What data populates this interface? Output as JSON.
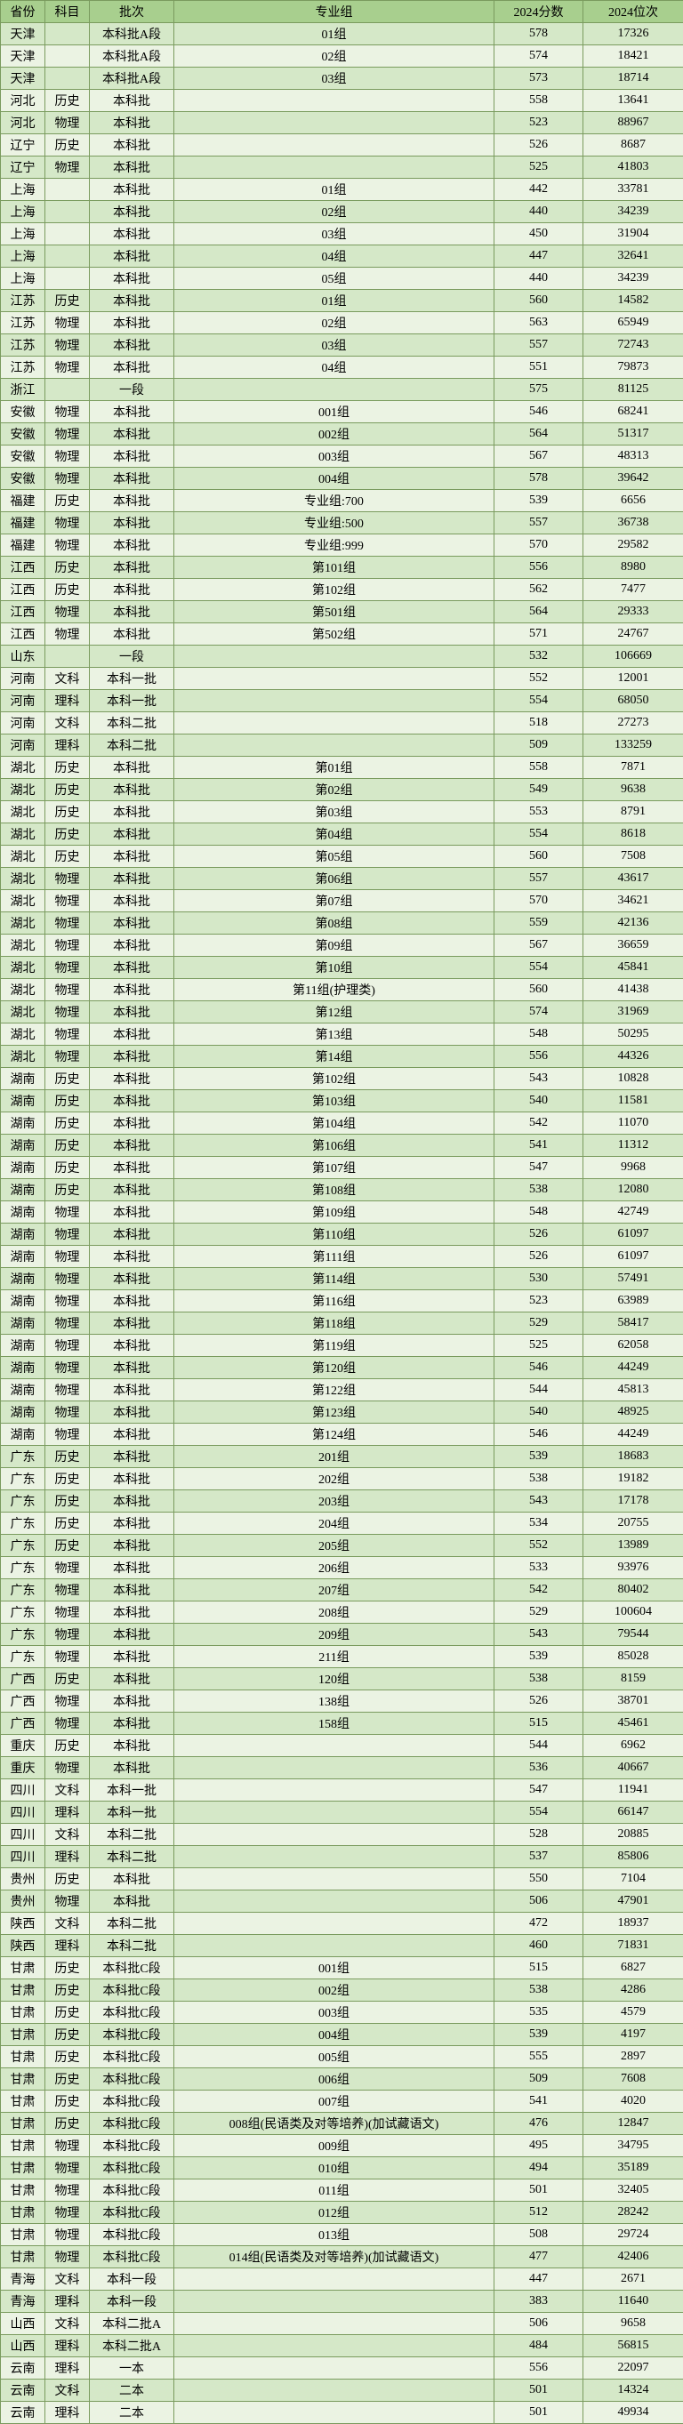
{
  "header_bg": "#a8cf8e",
  "row_colors": [
    "#d5e8c8",
    "#ebf3e3"
  ],
  "columns": [
    "省份",
    "科目",
    "批次",
    "专业组",
    "2024分数",
    "2024位次"
  ],
  "rows": [
    [
      "天津",
      "",
      "本科批A段",
      "01组",
      "578",
      "17326"
    ],
    [
      "天津",
      "",
      "本科批A段",
      "02组",
      "574",
      "18421"
    ],
    [
      "天津",
      "",
      "本科批A段",
      "03组",
      "573",
      "18714"
    ],
    [
      "河北",
      "历史",
      "本科批",
      "",
      "558",
      "13641"
    ],
    [
      "河北",
      "物理",
      "本科批",
      "",
      "523",
      "88967"
    ],
    [
      "辽宁",
      "历史",
      "本科批",
      "",
      "526",
      "8687"
    ],
    [
      "辽宁",
      "物理",
      "本科批",
      "",
      "525",
      "41803"
    ],
    [
      "上海",
      "",
      "本科批",
      "01组",
      "442",
      "33781"
    ],
    [
      "上海",
      "",
      "本科批",
      "02组",
      "440",
      "34239"
    ],
    [
      "上海",
      "",
      "本科批",
      "03组",
      "450",
      "31904"
    ],
    [
      "上海",
      "",
      "本科批",
      "04组",
      "447",
      "32641"
    ],
    [
      "上海",
      "",
      "本科批",
      "05组",
      "440",
      "34239"
    ],
    [
      "江苏",
      "历史",
      "本科批",
      "01组",
      "560",
      "14582"
    ],
    [
      "江苏",
      "物理",
      "本科批",
      "02组",
      "563",
      "65949"
    ],
    [
      "江苏",
      "物理",
      "本科批",
      "03组",
      "557",
      "72743"
    ],
    [
      "江苏",
      "物理",
      "本科批",
      "04组",
      "551",
      "79873"
    ],
    [
      "浙江",
      "",
      "一段",
      "",
      "575",
      "81125"
    ],
    [
      "安徽",
      "物理",
      "本科批",
      "001组",
      "546",
      "68241"
    ],
    [
      "安徽",
      "物理",
      "本科批",
      "002组",
      "564",
      "51317"
    ],
    [
      "安徽",
      "物理",
      "本科批",
      "003组",
      "567",
      "48313"
    ],
    [
      "安徽",
      "物理",
      "本科批",
      "004组",
      "578",
      "39642"
    ],
    [
      "福建",
      "历史",
      "本科批",
      "专业组:700",
      "539",
      "6656"
    ],
    [
      "福建",
      "物理",
      "本科批",
      "专业组:500",
      "557",
      "36738"
    ],
    [
      "福建",
      "物理",
      "本科批",
      "专业组:999",
      "570",
      "29582"
    ],
    [
      "江西",
      "历史",
      "本科批",
      "第101组",
      "556",
      "8980"
    ],
    [
      "江西",
      "历史",
      "本科批",
      "第102组",
      "562",
      "7477"
    ],
    [
      "江西",
      "物理",
      "本科批",
      "第501组",
      "564",
      "29333"
    ],
    [
      "江西",
      "物理",
      "本科批",
      "第502组",
      "571",
      "24767"
    ],
    [
      "山东",
      "",
      "一段",
      "",
      "532",
      "106669"
    ],
    [
      "河南",
      "文科",
      "本科一批",
      "",
      "552",
      "12001"
    ],
    [
      "河南",
      "理科",
      "本科一批",
      "",
      "554",
      "68050"
    ],
    [
      "河南",
      "文科",
      "本科二批",
      "",
      "518",
      "27273"
    ],
    [
      "河南",
      "理科",
      "本科二批",
      "",
      "509",
      "133259"
    ],
    [
      "湖北",
      "历史",
      "本科批",
      "第01组",
      "558",
      "7871"
    ],
    [
      "湖北",
      "历史",
      "本科批",
      "第02组",
      "549",
      "9638"
    ],
    [
      "湖北",
      "历史",
      "本科批",
      "第03组",
      "553",
      "8791"
    ],
    [
      "湖北",
      "历史",
      "本科批",
      "第04组",
      "554",
      "8618"
    ],
    [
      "湖北",
      "历史",
      "本科批",
      "第05组",
      "560",
      "7508"
    ],
    [
      "湖北",
      "物理",
      "本科批",
      "第06组",
      "557",
      "43617"
    ],
    [
      "湖北",
      "物理",
      "本科批",
      "第07组",
      "570",
      "34621"
    ],
    [
      "湖北",
      "物理",
      "本科批",
      "第08组",
      "559",
      "42136"
    ],
    [
      "湖北",
      "物理",
      "本科批",
      "第09组",
      "567",
      "36659"
    ],
    [
      "湖北",
      "物理",
      "本科批",
      "第10组",
      "554",
      "45841"
    ],
    [
      "湖北",
      "物理",
      "本科批",
      "第11组(护理类)",
      "560",
      "41438"
    ],
    [
      "湖北",
      "物理",
      "本科批",
      "第12组",
      "574",
      "31969"
    ],
    [
      "湖北",
      "物理",
      "本科批",
      "第13组",
      "548",
      "50295"
    ],
    [
      "湖北",
      "物理",
      "本科批",
      "第14组",
      "556",
      "44326"
    ],
    [
      "湖南",
      "历史",
      "本科批",
      "第102组",
      "543",
      "10828"
    ],
    [
      "湖南",
      "历史",
      "本科批",
      "第103组",
      "540",
      "11581"
    ],
    [
      "湖南",
      "历史",
      "本科批",
      "第104组",
      "542",
      "11070"
    ],
    [
      "湖南",
      "历史",
      "本科批",
      "第106组",
      "541",
      "11312"
    ],
    [
      "湖南",
      "历史",
      "本科批",
      "第107组",
      "547",
      "9968"
    ],
    [
      "湖南",
      "历史",
      "本科批",
      "第108组",
      "538",
      "12080"
    ],
    [
      "湖南",
      "物理",
      "本科批",
      "第109组",
      "548",
      "42749"
    ],
    [
      "湖南",
      "物理",
      "本科批",
      "第110组",
      "526",
      "61097"
    ],
    [
      "湖南",
      "物理",
      "本科批",
      "第111组",
      "526",
      "61097"
    ],
    [
      "湖南",
      "物理",
      "本科批",
      "第114组",
      "530",
      "57491"
    ],
    [
      "湖南",
      "物理",
      "本科批",
      "第116组",
      "523",
      "63989"
    ],
    [
      "湖南",
      "物理",
      "本科批",
      "第118组",
      "529",
      "58417"
    ],
    [
      "湖南",
      "物理",
      "本科批",
      "第119组",
      "525",
      "62058"
    ],
    [
      "湖南",
      "物理",
      "本科批",
      "第120组",
      "546",
      "44249"
    ],
    [
      "湖南",
      "物理",
      "本科批",
      "第122组",
      "544",
      "45813"
    ],
    [
      "湖南",
      "物理",
      "本科批",
      "第123组",
      "540",
      "48925"
    ],
    [
      "湖南",
      "物理",
      "本科批",
      "第124组",
      "546",
      "44249"
    ],
    [
      "广东",
      "历史",
      "本科批",
      "201组",
      "539",
      "18683"
    ],
    [
      "广东",
      "历史",
      "本科批",
      "202组",
      "538",
      "19182"
    ],
    [
      "广东",
      "历史",
      "本科批",
      "203组",
      "543",
      "17178"
    ],
    [
      "广东",
      "历史",
      "本科批",
      "204组",
      "534",
      "20755"
    ],
    [
      "广东",
      "历史",
      "本科批",
      "205组",
      "552",
      "13989"
    ],
    [
      "广东",
      "物理",
      "本科批",
      "206组",
      "533",
      "93976"
    ],
    [
      "广东",
      "物理",
      "本科批",
      "207组",
      "542",
      "80402"
    ],
    [
      "广东",
      "物理",
      "本科批",
      "208组",
      "529",
      "100604"
    ],
    [
      "广东",
      "物理",
      "本科批",
      "209组",
      "543",
      "79544"
    ],
    [
      "广东",
      "物理",
      "本科批",
      "211组",
      "539",
      "85028"
    ],
    [
      "广西",
      "历史",
      "本科批",
      "120组",
      "538",
      "8159"
    ],
    [
      "广西",
      "物理",
      "本科批",
      "138组",
      "526",
      "38701"
    ],
    [
      "广西",
      "物理",
      "本科批",
      "158组",
      "515",
      "45461"
    ],
    [
      "重庆",
      "历史",
      "本科批",
      "",
      "544",
      "6962"
    ],
    [
      "重庆",
      "物理",
      "本科批",
      "",
      "536",
      "40667"
    ],
    [
      "四川",
      "文科",
      "本科一批",
      "",
      "547",
      "11941"
    ],
    [
      "四川",
      "理科",
      "本科一批",
      "",
      "554",
      "66147"
    ],
    [
      "四川",
      "文科",
      "本科二批",
      "",
      "528",
      "20885"
    ],
    [
      "四川",
      "理科",
      "本科二批",
      "",
      "537",
      "85806"
    ],
    [
      "贵州",
      "历史",
      "本科批",
      "",
      "550",
      "7104"
    ],
    [
      "贵州",
      "物理",
      "本科批",
      "",
      "506",
      "47901"
    ],
    [
      "陕西",
      "文科",
      "本科二批",
      "",
      "472",
      "18937"
    ],
    [
      "陕西",
      "理科",
      "本科二批",
      "",
      "460",
      "71831"
    ],
    [
      "甘肃",
      "历史",
      "本科批C段",
      "001组",
      "515",
      "6827"
    ],
    [
      "甘肃",
      "历史",
      "本科批C段",
      "002组",
      "538",
      "4286"
    ],
    [
      "甘肃",
      "历史",
      "本科批C段",
      "003组",
      "535",
      "4579"
    ],
    [
      "甘肃",
      "历史",
      "本科批C段",
      "004组",
      "539",
      "4197"
    ],
    [
      "甘肃",
      "历史",
      "本科批C段",
      "005组",
      "555",
      "2897"
    ],
    [
      "甘肃",
      "历史",
      "本科批C段",
      "006组",
      "509",
      "7608"
    ],
    [
      "甘肃",
      "历史",
      "本科批C段",
      "007组",
      "541",
      "4020"
    ],
    [
      "甘肃",
      "历史",
      "本科批C段",
      "008组(民语类及对等培养)(加试藏语文)",
      "476",
      "12847"
    ],
    [
      "甘肃",
      "物理",
      "本科批C段",
      "009组",
      "495",
      "34795"
    ],
    [
      "甘肃",
      "物理",
      "本科批C段",
      "010组",
      "494",
      "35189"
    ],
    [
      "甘肃",
      "物理",
      "本科批C段",
      "011组",
      "501",
      "32405"
    ],
    [
      "甘肃",
      "物理",
      "本科批C段",
      "012组",
      "512",
      "28242"
    ],
    [
      "甘肃",
      "物理",
      "本科批C段",
      "013组",
      "508",
      "29724"
    ],
    [
      "甘肃",
      "物理",
      "本科批C段",
      "014组(民语类及对等培养)(加试藏语文)",
      "477",
      "42406"
    ],
    [
      "青海",
      "文科",
      "本科一段",
      "",
      "447",
      "2671"
    ],
    [
      "青海",
      "理科",
      "本科一段",
      "",
      "383",
      "11640"
    ],
    [
      "山西",
      "文科",
      "本科二批A",
      "",
      "506",
      "9658"
    ],
    [
      "山西",
      "理科",
      "本科二批A",
      "",
      "484",
      "56815"
    ],
    [
      "云南",
      "理科",
      "一本",
      "",
      "556",
      "22097"
    ],
    [
      "云南",
      "文科",
      "二本",
      "",
      "501",
      "14324"
    ],
    [
      "云南",
      "理科",
      "二本",
      "",
      "501",
      "49934"
    ]
  ]
}
